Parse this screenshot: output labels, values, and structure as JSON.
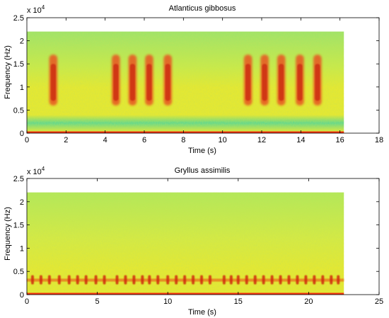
{
  "chart_data": [
    {
      "type": "heatmap",
      "title": "Atlanticus gibbosus",
      "xlabel": "Time (s)",
      "ylabel": "Frequency (Hz)",
      "y_multiplier_label": "x 10",
      "y_multiplier_exponent": "4",
      "xlim": [
        0,
        18
      ],
      "ylim": [
        0,
        2.5
      ],
      "xticks": [
        0,
        2,
        4,
        6,
        8,
        10,
        12,
        14,
        16,
        18
      ],
      "yticks": [
        0,
        0.5,
        1,
        1.5,
        2,
        2.5
      ],
      "ytick_labels": [
        "0",
        "0.5",
        "1",
        "1.5",
        "2",
        "2.5"
      ],
      "data_extent": {
        "t_end": 16.2,
        "f_max": 2.2
      },
      "chirps": {
        "centers_s": [
          1.35,
          4.55,
          5.4,
          6.25,
          7.2,
          11.3,
          12.15,
          13.0,
          13.95,
          14.85
        ],
        "width_s": 0.42,
        "band": [
          0.6,
          1.7
        ],
        "core": [
          0.7,
          1.5
        ]
      },
      "colors": {
        "background": "#e4e832",
        "upper": "#9ee36a",
        "low_band": "#62d88e",
        "chirp": "#e85522",
        "chirp_core": "#c82010",
        "baseline": "#f03412"
      }
    },
    {
      "type": "heatmap",
      "title": "Gryllus assimilis",
      "xlabel": "Time (s)",
      "ylabel": "Frequency (Hz)",
      "y_multiplier_label": "x 10",
      "y_multiplier_exponent": "4",
      "xlim": [
        0,
        25
      ],
      "ylim": [
        0,
        2.5
      ],
      "xticks": [
        0,
        5,
        10,
        15,
        20,
        25
      ],
      "yticks": [
        0,
        0.5,
        1,
        1.5,
        2,
        2.5
      ],
      "ytick_labels": [
        "0",
        "0.5",
        "1",
        "1.5",
        "2",
        "2.5"
      ],
      "data_extent": {
        "t_end": 22.5,
        "f_max": 2.2
      },
      "pulses": {
        "centers_s": [
          0.4,
          1.0,
          1.6,
          2.3,
          3.0,
          3.6,
          4.2,
          4.9,
          5.5,
          6.4,
          7.0,
          7.6,
          8.2,
          8.7,
          9.3,
          10.0,
          10.6,
          11.2,
          11.8,
          12.4,
          13.0,
          14.0,
          14.5,
          15.0,
          15.6,
          16.2,
          16.8,
          17.4,
          18.0,
          18.6,
          19.2,
          19.8,
          20.4,
          21.0,
          21.6,
          22.1
        ],
        "band": [
          0.22,
          0.42
        ],
        "core": [
          0.28,
          0.36
        ]
      },
      "colors": {
        "background": "#e4e832",
        "upper": "#b2e85a",
        "pulse": "#e8701e",
        "pulse_core": "#d02a10",
        "baseline": "#f03412"
      }
    }
  ]
}
